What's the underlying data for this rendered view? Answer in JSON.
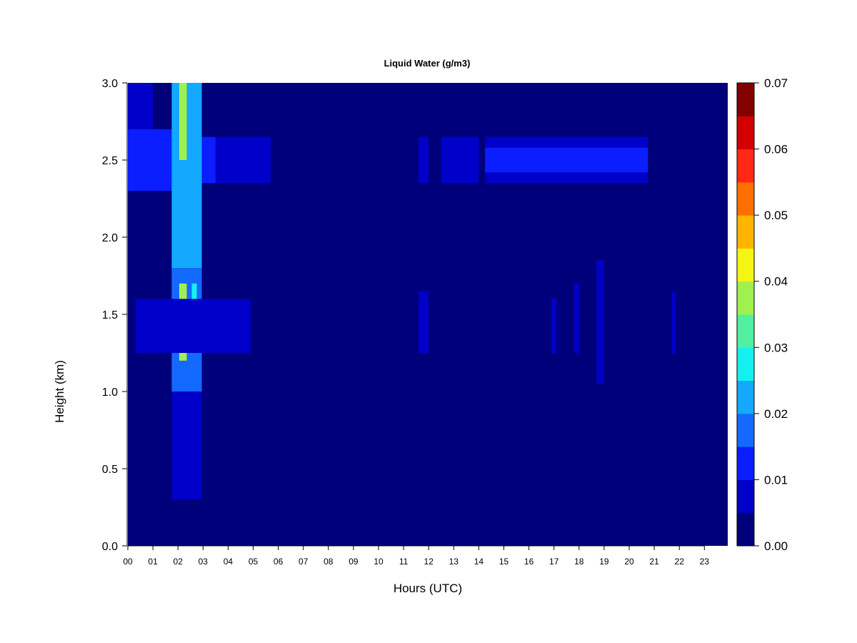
{
  "chart_data": {
    "type": "heatmap",
    "title": "Liquid Water (g/m3)",
    "xlabel": "Hours (UTC)",
    "ylabel": "Height (km)",
    "xlim": [
      0,
      24
    ],
    "ylim": [
      0.0,
      3.0
    ],
    "x_ticks": [
      "00",
      "01",
      "02",
      "03",
      "04",
      "05",
      "06",
      "07",
      "08",
      "09",
      "10",
      "11",
      "12",
      "13",
      "14",
      "15",
      "16",
      "17",
      "18",
      "19",
      "20",
      "21",
      "22",
      "23"
    ],
    "y_ticks": [
      "0.0",
      "0.5",
      "1.0",
      "1.5",
      "2.0",
      "2.5",
      "3.0"
    ],
    "background_value": 0.0,
    "colorbar": {
      "min": 0.0,
      "max": 0.07,
      "tick_labels": [
        "0.00",
        "0.01",
        "0.02",
        "0.03",
        "0.04",
        "0.05",
        "0.06",
        "0.07"
      ],
      "colors": [
        "#00007a",
        "#0000c8",
        "#0a1eff",
        "#1469ff",
        "#14a8ff",
        "#14f0f0",
        "#50f0a0",
        "#a0f050",
        "#f5f514",
        "#ffb400",
        "#ff6e00",
        "#ff2814",
        "#d20000",
        "#820000"
      ]
    },
    "features": [
      {
        "x": [
          0.0,
          1.0
        ],
        "y": [
          2.3,
          2.7
        ],
        "value": 0.01
      },
      {
        "x": [
          0.0,
          1.0
        ],
        "y": [
          2.7,
          3.0
        ],
        "value": 0.008
      },
      {
        "x": [
          1.0,
          1.75
        ],
        "y": [
          2.3,
          2.7
        ],
        "value": 0.012
      },
      {
        "x": [
          1.75,
          2.95
        ],
        "y": [
          0.3,
          1.0
        ],
        "value": 0.008
      },
      {
        "x": [
          1.75,
          2.95
        ],
        "y": [
          1.0,
          1.8
        ],
        "value": 0.018
      },
      {
        "x": [
          1.75,
          2.95
        ],
        "y": [
          1.8,
          3.0
        ],
        "value": 0.022
      },
      {
        "x": [
          2.05,
          2.35
        ],
        "y": [
          1.2,
          1.7
        ],
        "value": 0.035
      },
      {
        "x": [
          2.05,
          2.35
        ],
        "y": [
          2.5,
          3.0
        ],
        "value": 0.038
      },
      {
        "x": [
          2.55,
          2.75
        ],
        "y": [
          1.3,
          1.7
        ],
        "value": 0.028
      },
      {
        "x": [
          2.95,
          3.5
        ],
        "y": [
          2.35,
          2.65
        ],
        "value": 0.012
      },
      {
        "x": [
          3.5,
          5.7
        ],
        "y": [
          2.35,
          2.65
        ],
        "value": 0.008
      },
      {
        "x": [
          0.3,
          4.9
        ],
        "y": [
          1.25,
          1.6
        ],
        "value": 0.006
      },
      {
        "x": [
          11.6,
          12.0
        ],
        "y": [
          2.35,
          2.65
        ],
        "value": 0.008
      },
      {
        "x": [
          11.6,
          12.0
        ],
        "y": [
          1.25,
          1.65
        ],
        "value": 0.006
      },
      {
        "x": [
          12.5,
          14.0
        ],
        "y": [
          2.35,
          2.65
        ],
        "value": 0.007
      },
      {
        "x": [
          14.25,
          20.75
        ],
        "y": [
          2.35,
          2.65
        ],
        "value": 0.007
      },
      {
        "x": [
          14.25,
          20.75
        ],
        "y": [
          2.42,
          2.58
        ],
        "value": 0.011
      },
      {
        "x": [
          17.8,
          18.0
        ],
        "y": [
          1.25,
          1.7
        ],
        "value": 0.008
      },
      {
        "x": [
          18.7,
          19.0
        ],
        "y": [
          1.05,
          1.85
        ],
        "value": 0.007
      },
      {
        "x": [
          16.9,
          17.1
        ],
        "y": [
          1.25,
          1.6
        ],
        "value": 0.006
      },
      {
        "x": [
          21.7,
          21.85
        ],
        "y": [
          1.25,
          1.65
        ],
        "value": 0.006
      }
    ]
  }
}
